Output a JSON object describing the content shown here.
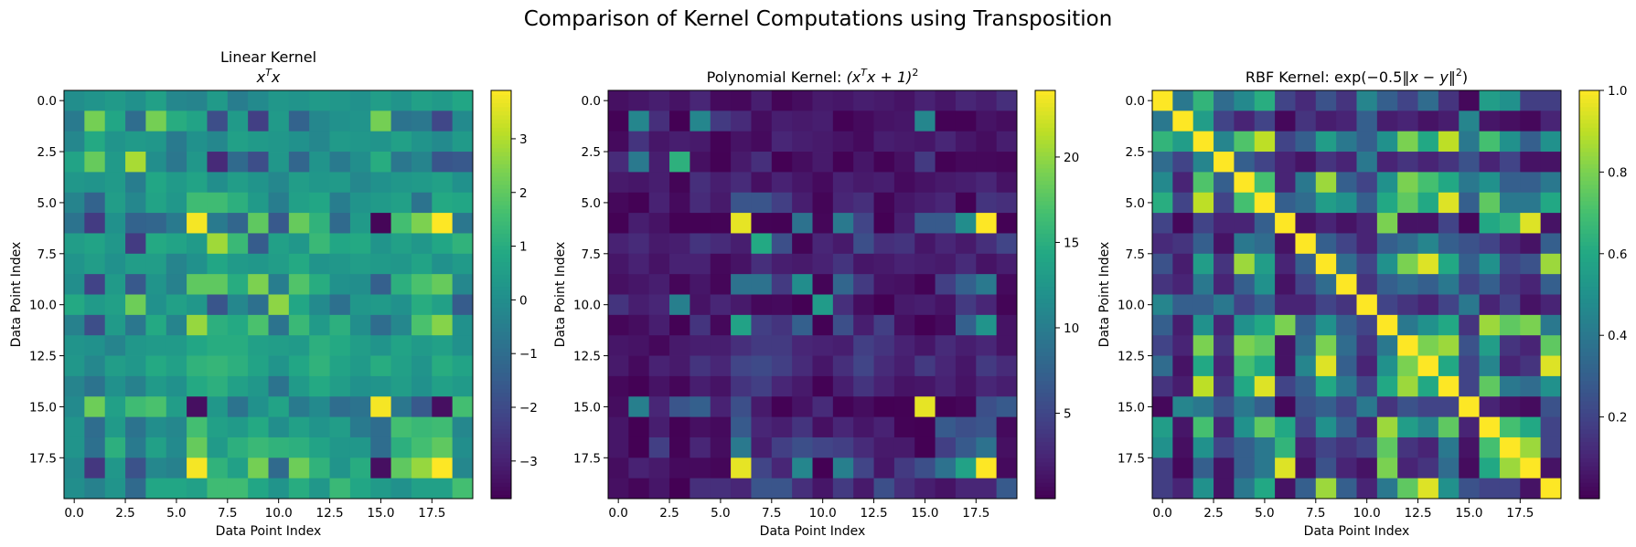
{
  "suptitle": "Comparison of Kernel Computations using Transposition",
  "chart_data": [
    {
      "type": "heatmap",
      "title_line1": "Linear Kernel",
      "title_math": "x^T x",
      "xlabel": "Data Point Index",
      "ylabel": "Data Point Index",
      "x_ticks": [
        "0.0",
        "2.5",
        "5.0",
        "7.5",
        "10.0",
        "12.5",
        "15.0",
        "17.5"
      ],
      "y_ticks": [
        "0.0",
        "2.5",
        "5.0",
        "7.5",
        "10.0",
        "12.5",
        "15.0",
        "17.5"
      ],
      "colorbar": {
        "vmin": -3.7,
        "vmax": 3.9,
        "ticks": [
          "−3",
          "−2",
          "−1",
          "0",
          "1",
          "2",
          "3"
        ],
        "tick_values": [
          -3,
          -2,
          -1,
          0,
          1,
          2,
          3
        ]
      },
      "colormap": "viridis",
      "matrix": [
        [
          0.0,
          0.2,
          0.4,
          0.1,
          0.6,
          -0.2,
          -0.3,
          0.4,
          -0.5,
          -0.1,
          0.3,
          0.2,
          0.4,
          0.3,
          0.1,
          0.5,
          0.2,
          0.6,
          0.4,
          0.8
        ],
        [
          -0.6,
          2.3,
          0.8,
          -1.0,
          2.3,
          1.0,
          0.7,
          -1.9,
          0.4,
          -2.3,
          0.4,
          -1.3,
          -0.2,
          0.1,
          0.2,
          2.3,
          -0.8,
          -0.7,
          -2.1,
          -0.1
        ],
        [
          -0.2,
          0.9,
          0.2,
          0.4,
          0.3,
          -0.6,
          0.1,
          -0.2,
          0.6,
          0.4,
          0.3,
          0.1,
          -0.2,
          0.4,
          0.3,
          0.2,
          0.6,
          0.2,
          -0.1,
          0.4
        ],
        [
          0.7,
          2.1,
          0.4,
          2.9,
          0.0,
          -0.7,
          0.3,
          -2.8,
          -1.1,
          -1.9,
          0.3,
          -1.2,
          0.2,
          -0.6,
          0.0,
          1.0,
          -0.7,
          -0.3,
          -1.7,
          -1.6
        ],
        [
          0.3,
          0.2,
          0.4,
          -0.5,
          0.8,
          0.4,
          0.7,
          0.0,
          0.5,
          0.2,
          -0.2,
          0.5,
          0.3,
          0.4,
          -0.2,
          0.1,
          0.3,
          0.4,
          0.6,
          0.1
        ],
        [
          -0.3,
          -1.3,
          0.5,
          -0.2,
          0.7,
          0.3,
          1.5,
          1.5,
          1.1,
          0.4,
          -0.5,
          0.6,
          0.8,
          -0.5,
          0.2,
          0.4,
          0.6,
          -0.8,
          0.9,
          0.8
        ],
        [
          -0.8,
          -2.4,
          0.1,
          -1.3,
          -1.2,
          -0.6,
          3.8,
          -0.6,
          -1.2,
          2.0,
          -1.6,
          2.1,
          1.2,
          -1.1,
          0.4,
          -3.6,
          1.6,
          2.4,
          3.9,
          -0.7
        ],
        [
          0.5,
          0.7,
          0.3,
          -2.4,
          0.9,
          0.7,
          0.4,
          2.8,
          1.4,
          -1.5,
          0.6,
          0.3,
          1.4,
          0.8,
          0.9,
          0.2,
          0.6,
          0.3,
          0.8,
          1.2
        ],
        [
          0.2,
          0.5,
          0.1,
          0.5,
          0.5,
          -0.3,
          0.1,
          0.8,
          0.4,
          0.3,
          0.5,
          0.9,
          0.2,
          0.3,
          0.5,
          0.4,
          0.3,
          0.7,
          0.1,
          0.4
        ],
        [
          0.0,
          -2.2,
          0.4,
          -1.6,
          0.2,
          -0.4,
          2.0,
          2.0,
          1.0,
          2.4,
          -0.5,
          1.8,
          1.0,
          0.1,
          0.0,
          -1.4,
          1.1,
          1.7,
          2.1,
          -0.2
        ],
        [
          0.9,
          0.4,
          0.6,
          2.2,
          0.1,
          0.6,
          0.3,
          -1.7,
          -0.2,
          -0.9,
          2.6,
          0.8,
          -0.1,
          -0.9,
          0.3,
          0.4,
          0.1,
          1.0,
          0.6,
          -1.5
        ],
        [
          -0.4,
          -1.9,
          0.4,
          -0.7,
          0.9,
          -0.3,
          2.7,
          1.1,
          0.9,
          1.7,
          -0.8,
          1.4,
          0.4,
          1.1,
          0.0,
          -1.0,
          -0.2,
          1.7,
          2.5,
          0.1
        ],
        [
          0.2,
          0.1,
          -0.3,
          0.3,
          0.4,
          0.4,
          0.8,
          1.0,
          1.0,
          0.6,
          0.5,
          0.4,
          1.1,
          0.9,
          0.5,
          0.2,
          0.7,
          0.4,
          0.6,
          0.1
        ],
        [
          0.3,
          -0.2,
          0.5,
          0.3,
          0.9,
          0.6,
          1.2,
          1.3,
          1.1,
          0.7,
          0.2,
          0.8,
          1.2,
          0.7,
          0.4,
          1.0,
          0.6,
          0.2,
          1.0,
          0.7
        ],
        [
          -0.3,
          -0.8,
          0.1,
          -0.4,
          0.4,
          0.1,
          0.9,
          1.1,
          0.6,
          0.3,
          -0.8,
          0.4,
          0.9,
          0.5,
          0.1,
          0.2,
          0.5,
          0.1,
          0.6,
          0.4
        ],
        [
          -0.1,
          2.2,
          0.6,
          1.5,
          1.7,
          0.5,
          -3.4,
          0.3,
          -0.8,
          0.1,
          0.7,
          -0.6,
          -0.1,
          -1.0,
          -0.8,
          3.8,
          -0.7,
          -1.6,
          -3.4,
          1.6
        ],
        [
          0.2,
          -1.0,
          0.4,
          -0.8,
          0.0,
          -0.2,
          1.6,
          0.6,
          0.4,
          0.9,
          0.0,
          0.6,
          0.2,
          0.5,
          -0.6,
          -1.0,
          1.6,
          1.4,
          1.5,
          -0.2
        ],
        [
          0.2,
          -0.9,
          1.1,
          -0.6,
          0.6,
          -0.1,
          2.1,
          0.4,
          1.1,
          1.4,
          1.2,
          1.1,
          0.7,
          0.3,
          0.3,
          -1.0,
          1.1,
          1.6,
          2.0,
          0.0
        ],
        [
          -0.1,
          -2.5,
          0.3,
          -1.8,
          -0.2,
          -0.4,
          3.8,
          1.2,
          0.6,
          2.3,
          -1.1,
          2.2,
          1.2,
          0.2,
          1.0,
          -3.4,
          2.0,
          2.7,
          3.9,
          -0.2
        ],
        [
          0.0,
          -0.4,
          0.2,
          -1.1,
          0.8,
          0.8,
          0.6,
          1.5,
          1.5,
          0.8,
          0.2,
          1.0,
          0.3,
          1.4,
          0.8,
          0.4,
          0.1,
          0.6,
          0.6,
          1.6
        ]
      ]
    },
    {
      "type": "heatmap",
      "title_prefix": "Polynomial Kernel: ",
      "title_math": "(x^T x + 1)^2",
      "xlabel": "Data Point Index",
      "ylabel": "Data Point Index",
      "x_ticks": [
        "0.0",
        "2.5",
        "5.0",
        "7.5",
        "10.0",
        "12.5",
        "15.0",
        "17.5"
      ],
      "y_ticks": [
        "0.0",
        "2.5",
        "5.0",
        "7.5",
        "10.0",
        "12.5",
        "15.0",
        "17.5"
      ],
      "colorbar": {
        "vmin": 0,
        "vmax": 23.9,
        "ticks": [
          "5",
          "10",
          "15",
          "20"
        ],
        "tick_values": [
          5,
          10,
          15,
          20
        ]
      },
      "colormap": "viridis",
      "derived_from": "linear",
      "transform": "(v+1)^2"
    },
    {
      "type": "heatmap",
      "title_prefix": "RBF Kernel: ",
      "title_math": "exp(−0.5‖x − y‖^2)",
      "xlabel": "Data Point Index",
      "ylabel": "Data Point Index",
      "x_ticks": [
        "0.0",
        "2.5",
        "5.0",
        "7.5",
        "10.0",
        "12.5",
        "15.0",
        "17.5"
      ],
      "y_ticks": [
        "0.0",
        "2.5",
        "5.0",
        "7.5",
        "10.0",
        "12.5",
        "15.0",
        "17.5"
      ],
      "colorbar": {
        "vmin": 0,
        "vmax": 1.0,
        "ticks": [
          "0.2",
          "0.4",
          "0.6",
          "0.8",
          "1.0"
        ],
        "tick_values": [
          0.2,
          0.4,
          0.6,
          0.8,
          1.0
        ]
      },
      "colormap": "viridis",
      "matrix": [
        [
          1.0,
          0.4,
          0.65,
          0.35,
          0.47,
          0.62,
          0.2,
          0.12,
          0.25,
          0.15,
          0.45,
          0.3,
          0.2,
          0.35,
          0.15,
          0.02,
          0.55,
          0.5,
          0.18,
          0.18
        ],
        [
          0.4,
          1.0,
          0.55,
          0.2,
          0.1,
          0.2,
          0.02,
          0.15,
          0.08,
          0.1,
          0.3,
          0.08,
          0.1,
          0.05,
          0.08,
          0.45,
          0.06,
          0.04,
          0.02,
          0.1
        ],
        [
          0.65,
          0.55,
          1.0,
          0.45,
          0.72,
          0.9,
          0.2,
          0.3,
          0.55,
          0.4,
          0.3,
          0.5,
          0.8,
          0.6,
          0.9,
          0.4,
          0.7,
          0.5,
          0.3,
          0.5
        ],
        [
          0.35,
          0.2,
          0.45,
          1.0,
          0.3,
          0.2,
          0.1,
          0.05,
          0.15,
          0.1,
          0.4,
          0.1,
          0.15,
          0.1,
          0.15,
          0.25,
          0.1,
          0.2,
          0.05,
          0.05
        ],
        [
          0.47,
          0.1,
          0.72,
          0.3,
          1.0,
          0.7,
          0.1,
          0.4,
          0.85,
          0.3,
          0.2,
          0.5,
          0.8,
          0.7,
          0.6,
          0.4,
          0.5,
          0.3,
          0.3,
          0.4
        ],
        [
          0.62,
          0.2,
          0.9,
          0.2,
          0.7,
          1.0,
          0.3,
          0.35,
          0.55,
          0.5,
          0.3,
          0.6,
          0.75,
          0.6,
          0.95,
          0.3,
          0.75,
          0.4,
          0.4,
          0.6
        ],
        [
          0.2,
          0.02,
          0.2,
          0.1,
          0.1,
          0.3,
          1.0,
          0.05,
          0.1,
          0.05,
          0.1,
          0.8,
          0.05,
          0.05,
          0.2,
          0.02,
          0.6,
          0.65,
          0.95,
          0.05
        ],
        [
          0.12,
          0.15,
          0.3,
          0.05,
          0.4,
          0.35,
          0.05,
          1.0,
          0.3,
          0.2,
          0.1,
          0.3,
          0.35,
          0.45,
          0.3,
          0.25,
          0.2,
          0.1,
          0.05,
          0.3
        ],
        [
          0.25,
          0.08,
          0.55,
          0.15,
          0.85,
          0.55,
          0.1,
          0.3,
          1.0,
          0.35,
          0.2,
          0.5,
          0.8,
          0.95,
          0.6,
          0.3,
          0.5,
          0.2,
          0.25,
          0.85
        ],
        [
          0.15,
          0.1,
          0.4,
          0.1,
          0.3,
          0.5,
          0.05,
          0.2,
          0.35,
          1.0,
          0.15,
          0.3,
          0.35,
          0.3,
          0.4,
          0.2,
          0.3,
          0.15,
          0.1,
          0.3
        ],
        [
          0.45,
          0.3,
          0.3,
          0.4,
          0.2,
          0.3,
          0.1,
          0.1,
          0.2,
          0.15,
          1.0,
          0.2,
          0.15,
          0.1,
          0.2,
          0.4,
          0.1,
          0.2,
          0.05,
          0.1
        ],
        [
          0.3,
          0.08,
          0.5,
          0.1,
          0.5,
          0.6,
          0.8,
          0.3,
          0.5,
          0.3,
          0.2,
          1.0,
          0.4,
          0.5,
          0.6,
          0.15,
          0.85,
          0.75,
          0.8,
          0.4
        ],
        [
          0.2,
          0.1,
          0.8,
          0.15,
          0.8,
          0.75,
          0.05,
          0.35,
          0.8,
          0.35,
          0.15,
          0.4,
          1.0,
          0.8,
          0.85,
          0.25,
          0.55,
          0.15,
          0.1,
          0.75
        ],
        [
          0.35,
          0.05,
          0.6,
          0.1,
          0.7,
          0.6,
          0.05,
          0.45,
          0.95,
          0.3,
          0.1,
          0.5,
          0.8,
          1.0,
          0.6,
          0.2,
          0.45,
          0.1,
          0.15,
          0.95
        ],
        [
          0.15,
          0.08,
          0.9,
          0.15,
          0.6,
          0.95,
          0.2,
          0.3,
          0.6,
          0.4,
          0.2,
          0.6,
          0.85,
          0.6,
          1.0,
          0.2,
          0.75,
          0.4,
          0.35,
          0.5
        ],
        [
          0.02,
          0.45,
          0.4,
          0.25,
          0.4,
          0.3,
          0.02,
          0.25,
          0.3,
          0.2,
          0.4,
          0.15,
          0.25,
          0.2,
          0.2,
          1.0,
          0.1,
          0.05,
          0.03,
          0.25
        ],
        [
          0.55,
          0.06,
          0.7,
          0.1,
          0.5,
          0.75,
          0.6,
          0.2,
          0.5,
          0.3,
          0.1,
          0.85,
          0.55,
          0.45,
          0.75,
          0.1,
          1.0,
          0.7,
          0.6,
          0.2
        ],
        [
          0.5,
          0.04,
          0.5,
          0.2,
          0.3,
          0.4,
          0.65,
          0.1,
          0.2,
          0.15,
          0.2,
          0.75,
          0.15,
          0.1,
          0.4,
          0.05,
          0.7,
          1.0,
          0.85,
          0.2
        ],
        [
          0.18,
          0.02,
          0.3,
          0.05,
          0.3,
          0.4,
          0.95,
          0.05,
          0.25,
          0.1,
          0.05,
          0.8,
          0.1,
          0.15,
          0.35,
          0.03,
          0.6,
          0.85,
          1.0,
          0.05
        ],
        [
          0.18,
          0.1,
          0.5,
          0.05,
          0.4,
          0.6,
          0.05,
          0.3,
          0.85,
          0.3,
          0.1,
          0.4,
          0.75,
          0.95,
          0.5,
          0.25,
          0.2,
          0.2,
          0.05,
          1.0
        ]
      ]
    }
  ]
}
